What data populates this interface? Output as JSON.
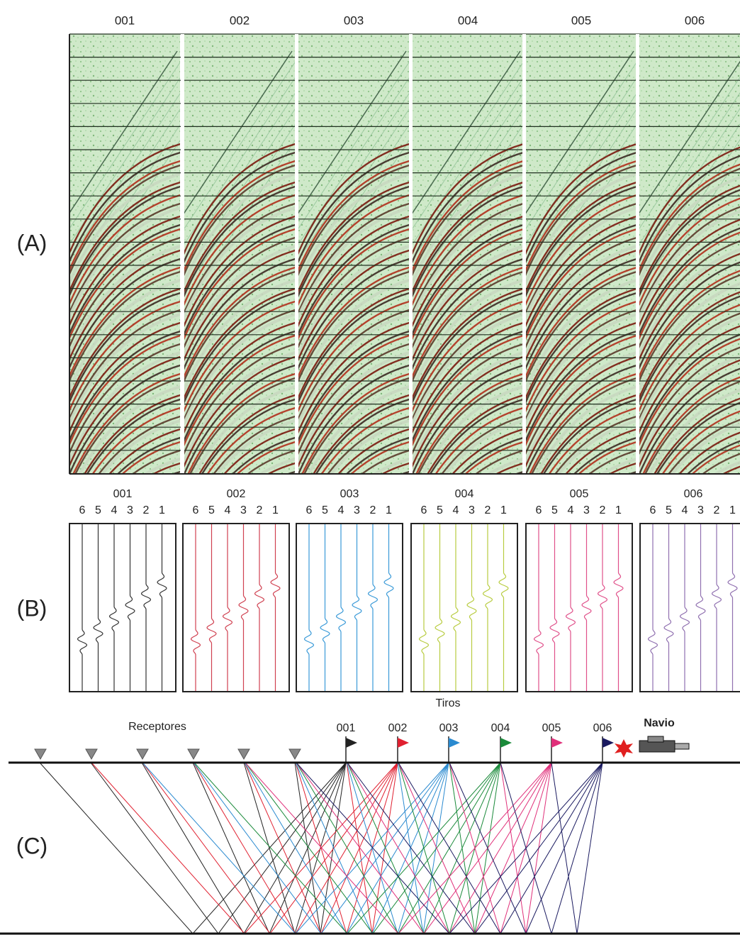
{
  "panel_a": {
    "label": "(A)",
    "shots": [
      "001",
      "002",
      "003",
      "004",
      "005",
      "006"
    ]
  },
  "panel_b": {
    "label": "(B)",
    "shots": [
      "001",
      "002",
      "003",
      "004",
      "005",
      "006"
    ],
    "trace_numbers": [
      "6",
      "5",
      "4",
      "3",
      "2",
      "1"
    ]
  },
  "panel_c": {
    "label": "(C)",
    "title": "Tiros",
    "receivers_label": "Receptores",
    "ship_label": "Navio",
    "shots": [
      "001",
      "002",
      "003",
      "004",
      "005",
      "006"
    ]
  }
}
